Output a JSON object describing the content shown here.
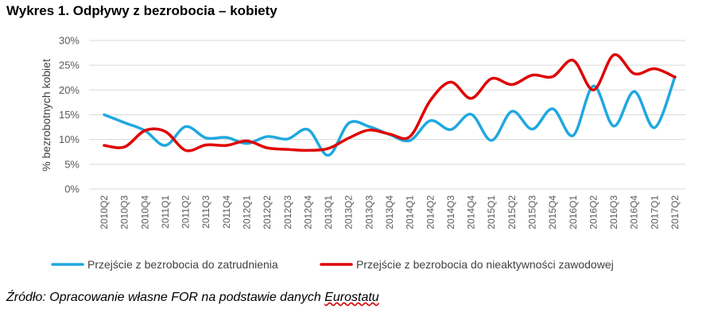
{
  "title": "Wykres 1. Odpływy z bezrobocia – kobiety",
  "source": {
    "prefix": "Źródło: Opracowanie własne FOR na podstawie danych ",
    "link": "Eurostatu"
  },
  "chart_data": {
    "type": "line",
    "ylabel": "% bezrobotnych kobiet",
    "ylim": [
      0,
      30
    ],
    "yticks": [
      "0%",
      "5%",
      "10%",
      "15%",
      "20%",
      "25%",
      "30%"
    ],
    "grid": true,
    "legend_position": "bottom",
    "categories": [
      "2010Q2",
      "2010Q3",
      "2010Q4",
      "2011Q1",
      "2011Q2",
      "2011Q3",
      "2011Q4",
      "2012Q1",
      "2012Q2",
      "2012Q3",
      "2012Q4",
      "2013Q1",
      "2013Q2",
      "2013Q3",
      "2013Q4",
      "2014Q1",
      "2014Q2",
      "2014Q3",
      "2014Q4",
      "2015Q1",
      "2015Q2",
      "2015Q3",
      "2015Q4",
      "2016Q1",
      "2016Q2",
      "2016Q3",
      "2016Q4",
      "2017Q1",
      "2017Q2"
    ],
    "series": [
      {
        "name": "Przejście z bezrobocia do zatrudnienia",
        "color": "#1FA8E0",
        "values": [
          15.0,
          13.4,
          11.8,
          8.8,
          12.6,
          10.3,
          10.4,
          9.2,
          10.6,
          10.1,
          12.0,
          6.8,
          13.3,
          12.6,
          11.0,
          9.8,
          13.8,
          12.0,
          15.1,
          9.8,
          15.7,
          12.1,
          16.2,
          10.8,
          20.8,
          12.7,
          19.7,
          12.4,
          22.7
        ]
      },
      {
        "name": "Przejście z bezrobocia do nieaktywności zawodowej",
        "color": "#E00000",
        "values": [
          8.8,
          8.5,
          11.8,
          11.6,
          7.8,
          8.9,
          8.8,
          9.7,
          8.3,
          8.0,
          7.8,
          8.2,
          10.3,
          11.9,
          11.1,
          10.6,
          17.9,
          21.6,
          18.3,
          22.3,
          21.1,
          23.0,
          22.7,
          26.0,
          20.0,
          27.1,
          23.3,
          24.3,
          22.6
        ]
      }
    ]
  }
}
